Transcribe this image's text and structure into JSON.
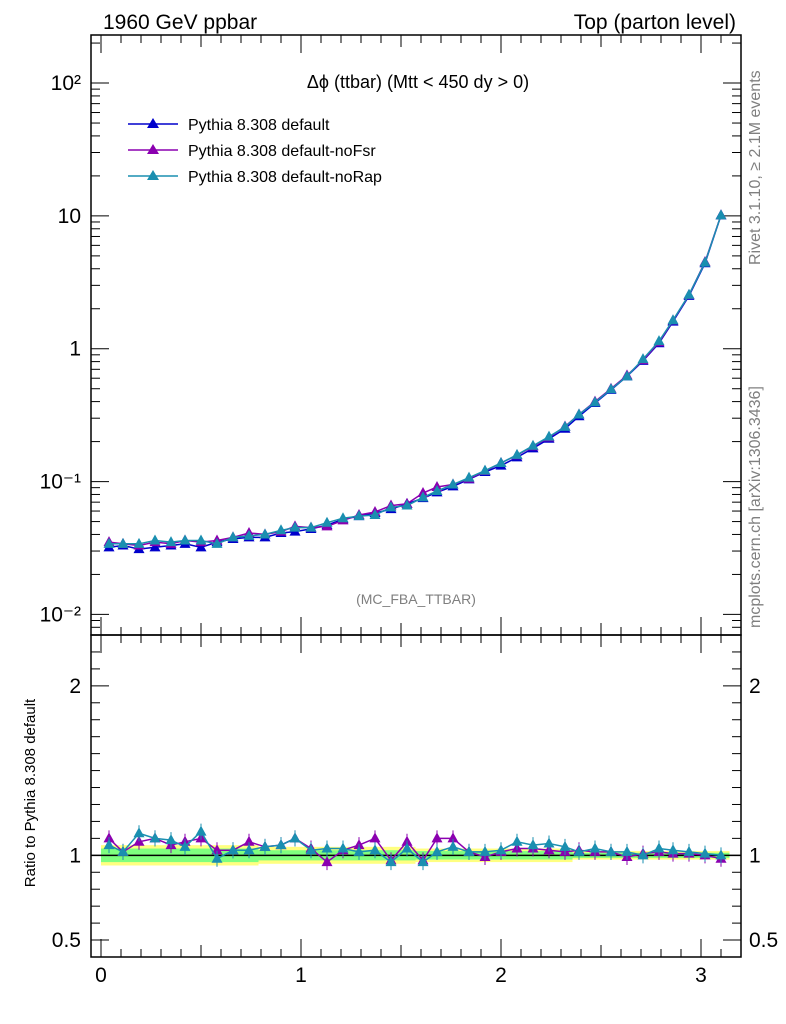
{
  "header": {
    "left": "1960 GeV ppbar",
    "right": "Top (parton level)"
  },
  "side": {
    "rivet": "Rivet 3.1.10, ≥ 2.1M events",
    "mcplots": "mcplots.cern.ch [arXiv:1306.3436]"
  },
  "main_title": "Δϕ (ttbar) (Mtt < 450 dy > 0)",
  "analysis_tag": "(MC_FBA_TTBAR)",
  "ratio_ylabel": "Ratio to Pythia 8.308 default",
  "colors": {
    "default": "#0000cc",
    "noFsr": "#8b00b0",
    "noRap": "#1a8fb0",
    "band_inner": "#7fff7f",
    "band_outer": "#ffff80"
  },
  "chart_data": [
    {
      "type": "line",
      "scale": "log-y",
      "xlim": [
        -0.05,
        3.2
      ],
      "ylim": [
        0.007,
        230
      ],
      "y_ticks": [
        "10⁻²",
        "10⁻¹",
        "1",
        "10",
        "10²"
      ],
      "x": [
        0.04,
        0.11,
        0.19,
        0.27,
        0.35,
        0.42,
        0.5,
        0.58,
        0.66,
        0.74,
        0.82,
        0.9,
        0.97,
        1.05,
        1.13,
        1.21,
        1.29,
        1.37,
        1.45,
        1.53,
        1.61,
        1.68,
        1.76,
        1.84,
        1.92,
        2.0,
        2.08,
        2.16,
        2.24,
        2.32,
        2.39,
        2.47,
        2.55,
        2.63,
        2.71,
        2.79,
        2.86,
        2.94,
        3.02,
        3.1
      ],
      "series": [
        {
          "name": "Pythia 8.308 default",
          "color_key": "default",
          "values": [
            0.032,
            0.033,
            0.031,
            0.032,
            0.033,
            0.034,
            0.032,
            0.035,
            0.037,
            0.038,
            0.038,
            0.041,
            0.042,
            0.044,
            0.047,
            0.052,
            0.055,
            0.058,
            0.062,
            0.068,
            0.075,
            0.083,
            0.092,
            0.104,
            0.118,
            0.132,
            0.152,
            0.178,
            0.21,
            0.25,
            0.31,
            0.39,
            0.49,
            0.62,
            0.81,
            1.1,
            1.6,
            2.5,
            4.4,
            10.1
          ]
        },
        {
          "name": "Pythia 8.308 default-noFsr",
          "color_key": "noFsr",
          "values": [
            0.035,
            0.034,
            0.033,
            0.035,
            0.034,
            0.036,
            0.035,
            0.036,
            0.038,
            0.041,
            0.04,
            0.042,
            0.046,
            0.045,
            0.046,
            0.051,
            0.056,
            0.059,
            0.066,
            0.068,
            0.082,
            0.091,
            0.095,
            0.105,
            0.12,
            0.138,
            0.158,
            0.184,
            0.215,
            0.26,
            0.32,
            0.4,
            0.5,
            0.63,
            0.82,
            1.12,
            1.63,
            2.54,
            4.5,
            10.1
          ]
        },
        {
          "name": "Pythia 8.308 default-noRap",
          "color_key": "noRap",
          "values": [
            0.034,
            0.034,
            0.034,
            0.036,
            0.035,
            0.036,
            0.036,
            0.034,
            0.038,
            0.039,
            0.04,
            0.043,
            0.045,
            0.045,
            0.049,
            0.053,
            0.055,
            0.056,
            0.064,
            0.066,
            0.076,
            0.085,
            0.095,
            0.107,
            0.121,
            0.138,
            0.159,
            0.186,
            0.218,
            0.258,
            0.32,
            0.395,
            0.495,
            0.62,
            0.835,
            1.14,
            1.64,
            2.55,
            4.45,
            10.1
          ]
        }
      ]
    },
    {
      "type": "line",
      "xlim": [
        -0.05,
        3.2
      ],
      "ylim": [
        0.4,
        2.3
      ],
      "x_ticks": [
        "0",
        "1",
        "2",
        "3"
      ],
      "y_ticks": [
        "0.5",
        "1",
        "2"
      ],
      "x": [
        0.04,
        0.11,
        0.19,
        0.27,
        0.35,
        0.42,
        0.5,
        0.58,
        0.66,
        0.74,
        0.82,
        0.9,
        0.97,
        1.05,
        1.13,
        1.21,
        1.29,
        1.37,
        1.45,
        1.53,
        1.61,
        1.68,
        1.76,
        1.84,
        1.92,
        2.0,
        2.08,
        2.16,
        2.24,
        2.32,
        2.39,
        2.47,
        2.55,
        2.63,
        2.71,
        2.79,
        2.86,
        2.94,
        3.02,
        3.1
      ],
      "band_inner": [
        0.04,
        0.03,
        0.025,
        0.015
      ],
      "band_outer": [
        0.06,
        0.05,
        0.04,
        0.025
      ],
      "series": [
        {
          "name": "Pythia 8.308 default-noFsr",
          "color_key": "noFsr",
          "values": [
            1.1,
            1.02,
            1.08,
            1.1,
            1.06,
            1.08,
            1.1,
            1.03,
            1.03,
            1.08,
            1.05,
            1.06,
            1.1,
            1.04,
            0.96,
            1.03,
            1.06,
            1.1,
            0.97,
            1.08,
            0.97,
            1.1,
            1.1,
            1.02,
            0.99,
            1.02,
            1.04,
            1.04,
            1.03,
            1.02,
            1.03,
            1.02,
            1.02,
            0.99,
            1.01,
            1.02,
            1.01,
            1.01,
            1.0,
            0.98
          ]
        },
        {
          "name": "Pythia 8.308 default-noRap",
          "color_key": "noRap",
          "values": [
            1.06,
            1.02,
            1.13,
            1.1,
            1.09,
            1.05,
            1.14,
            0.98,
            1.03,
            1.03,
            1.05,
            1.06,
            1.1,
            1.03,
            1.04,
            1.04,
            1.02,
            1.03,
            0.96,
            1.04,
            0.96,
            1.02,
            1.05,
            1.02,
            1.02,
            1.03,
            1.08,
            1.06,
            1.07,
            1.05,
            1.02,
            1.04,
            1.02,
            1.02,
            1.0,
            1.04,
            1.03,
            1.02,
            1.01,
            1.0
          ]
        }
      ]
    }
  ]
}
